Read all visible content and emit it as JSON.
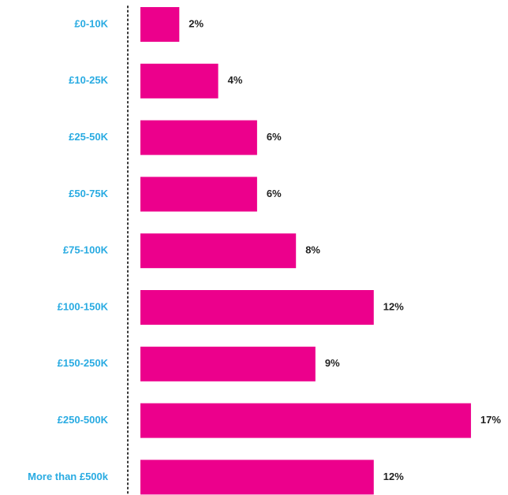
{
  "chart_data": {
    "type": "bar",
    "orientation": "horizontal",
    "categories": [
      "£0-10K",
      "£10-25K",
      "£25-50K",
      "£50-75K",
      "£75-100K",
      "£100-150K",
      "£150-250K",
      "£250-500K",
      "More than £500k"
    ],
    "values": [
      2,
      4,
      6,
      6,
      8,
      12,
      9,
      17,
      12
    ],
    "value_labels": [
      "2%",
      "4%",
      "6%",
      "6%",
      "8%",
      "12%",
      "9%",
      "17%",
      "12%"
    ],
    "color": "#ec008c",
    "category_color": "#29abe2"
  }
}
